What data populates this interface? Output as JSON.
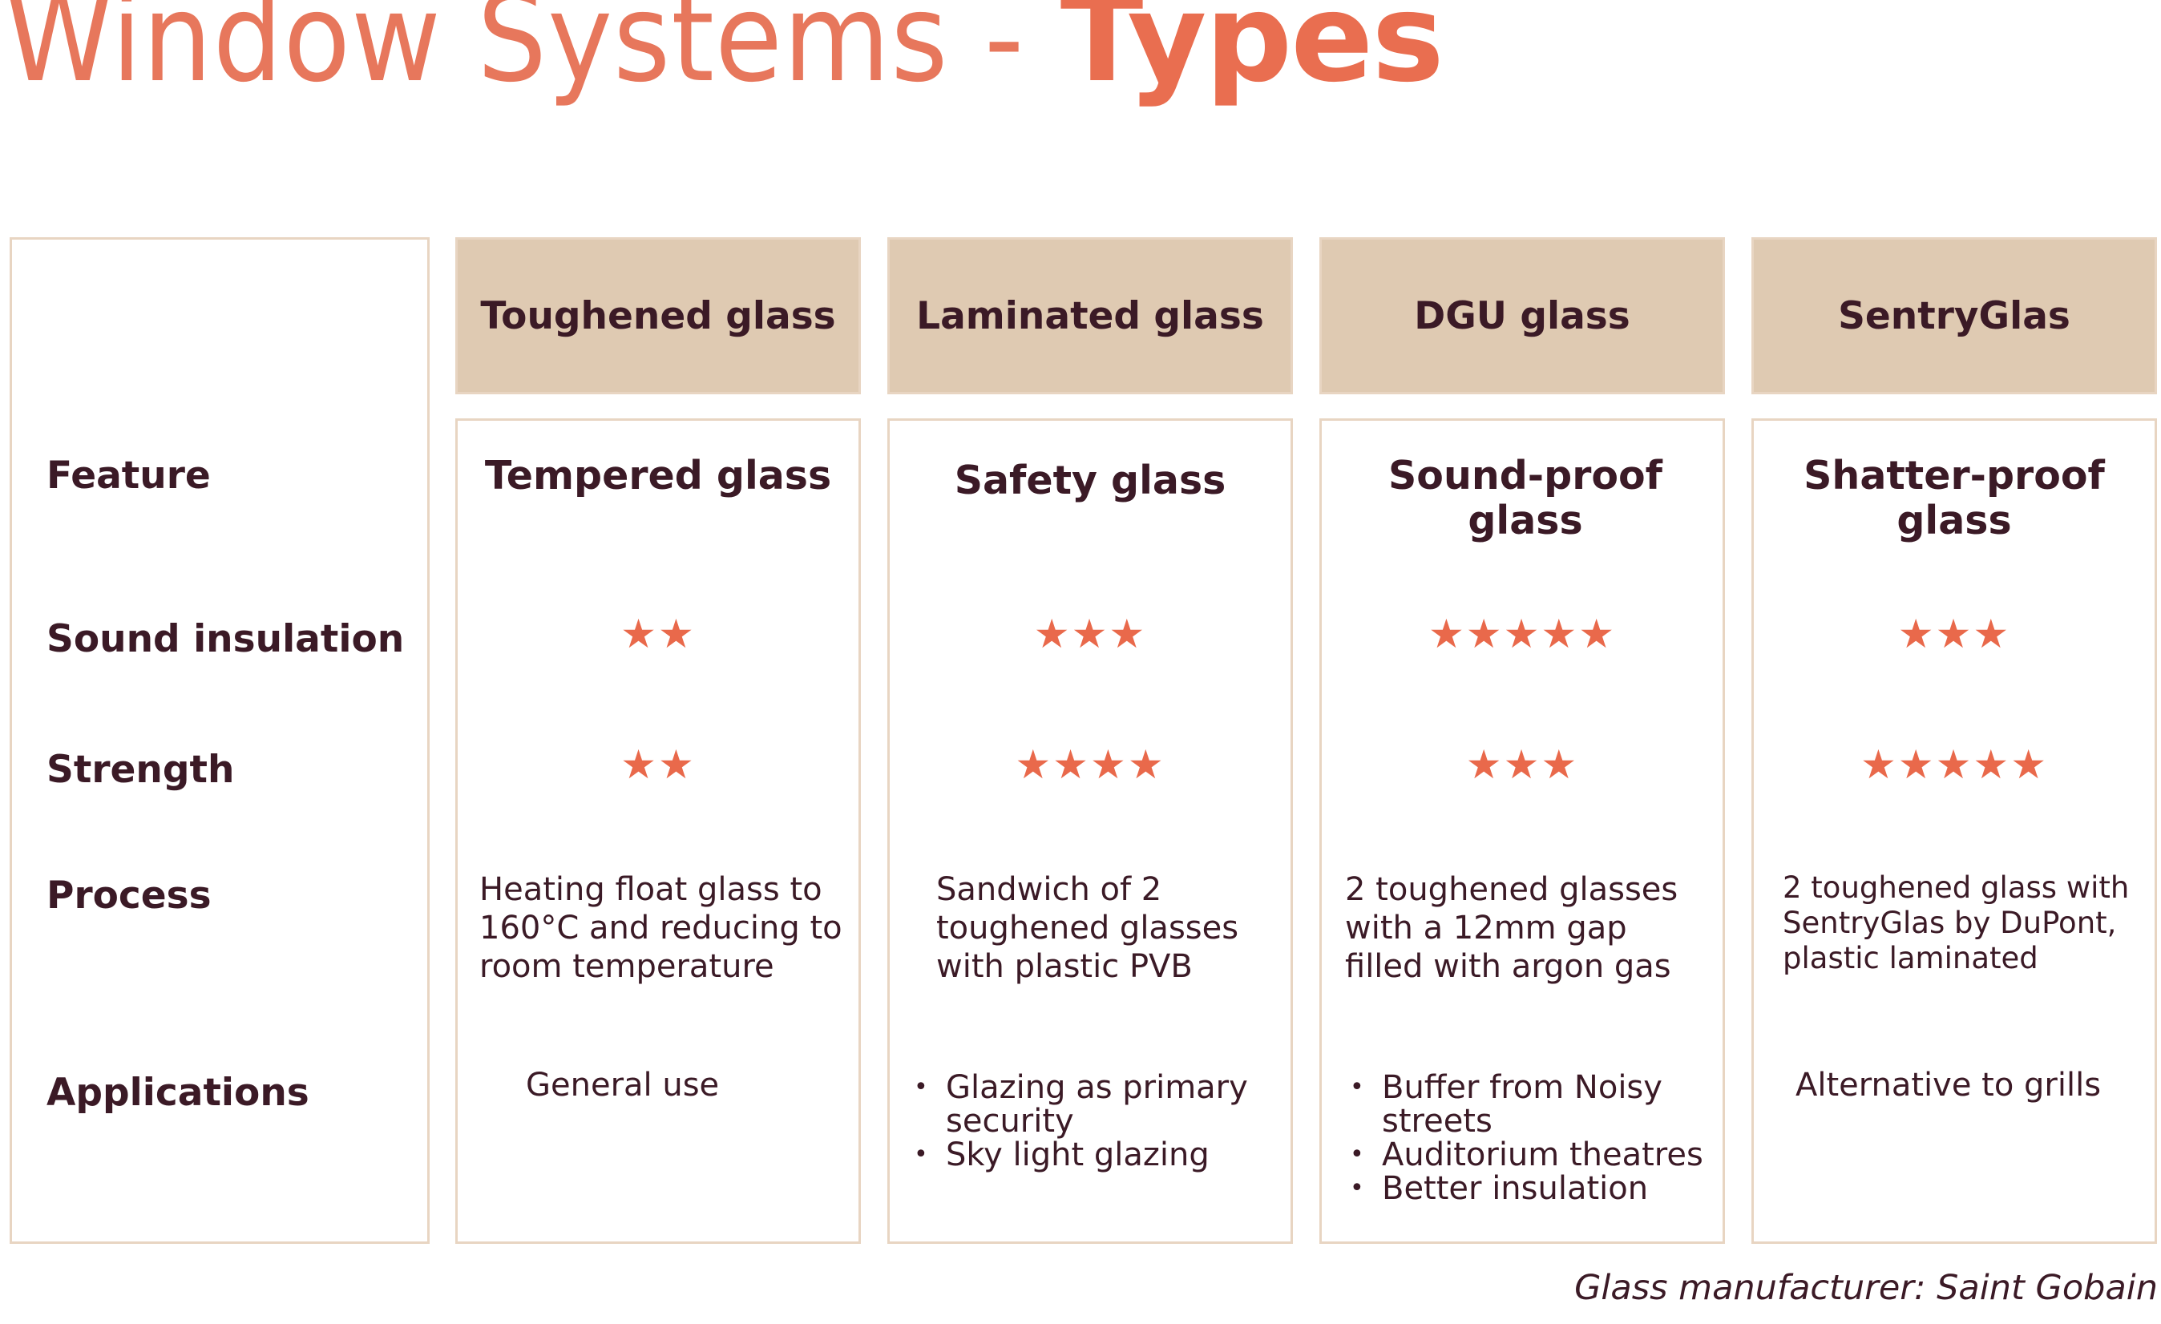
{
  "title": {
    "light": "Window Systems - ",
    "bold": "Types"
  },
  "row_labels": {
    "feature": "Feature",
    "sound": "Sound insulation",
    "strength": "Strength",
    "process": "Process",
    "applications": "Applications"
  },
  "columns": [
    {
      "header": "Toughened glass",
      "feature": "Tempered glass",
      "sound_stars": "★★",
      "sound_rating": 2,
      "strength_stars": "★★",
      "strength_rating": 2,
      "process": "Heating float glass to 160°C and reducing to room temperature",
      "applications_text": "General use",
      "applications": []
    },
    {
      "header": "Laminated glass",
      "feature": "Safety glass",
      "sound_stars": "★★★",
      "sound_rating": 3,
      "strength_stars": "★★★★",
      "strength_rating": 4,
      "process": "Sandwich of 2 toughened glasses with plastic PVB",
      "applications_text": "",
      "applications": [
        "Glazing as primary security",
        "Sky light glazing"
      ]
    },
    {
      "header": "DGU glass",
      "feature": "Sound-proof glass",
      "sound_stars": "★★★★★",
      "sound_rating": 5,
      "strength_stars": "★★★",
      "strength_rating": 3,
      "process": "2 toughened glasses with a 12mm gap filled with argon gas",
      "applications_text": "",
      "applications": [
        "Buffer from Noisy streets",
        "Auditorium theatres",
        "Better insulation"
      ]
    },
    {
      "header": "SentryGlas",
      "feature": "Shatter-proof glass",
      "sound_stars": "★★★",
      "sound_rating": 3,
      "strength_stars": "★★★★★",
      "strength_rating": 5,
      "process": "2 toughened glass with SentryGlas by DuPont, plastic laminated",
      "applications_text": "Alternative to grills",
      "applications": []
    }
  ],
  "footer": "Glass manufacturer: Saint Gobain",
  "colors": {
    "accent": "#e96e50",
    "header_bg": "#dfcab2",
    "border": "#e8d5c2",
    "text": "#3b1a26"
  }
}
